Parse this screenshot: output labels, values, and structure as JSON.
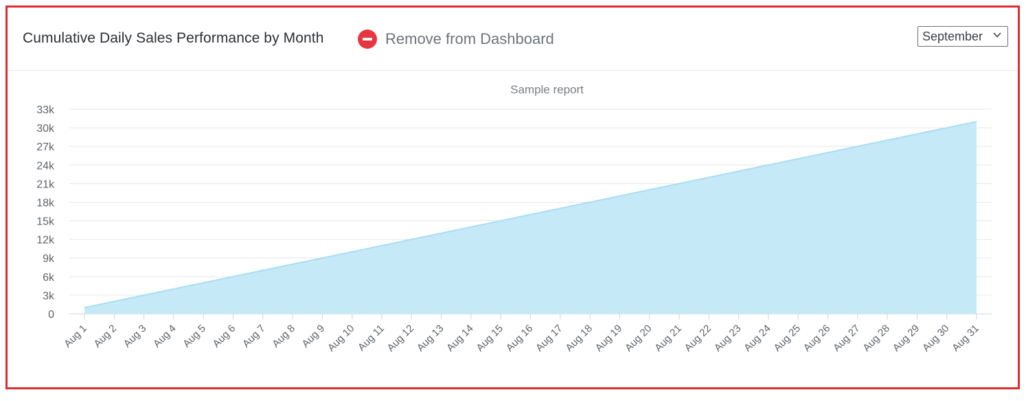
{
  "header": {
    "title": "Cumulative Daily Sales Performance by Month",
    "remove_label": "Remove from Dashboard",
    "month_selected": "September"
  },
  "icons": {
    "remove": "minus-circle-icon",
    "dropdown": "chevron-down-icon"
  },
  "colors": {
    "frame_border": "#e02b2f",
    "remove_icon": "#e8363f",
    "area_fill": "#c5e9f7",
    "area_line": "#a9ddf3"
  },
  "chart_data": {
    "type": "area",
    "title": "Sample report",
    "xlabel": "",
    "ylabel": "",
    "ylim": [
      0,
      33000
    ],
    "y_ticks": [
      0,
      3000,
      6000,
      9000,
      12000,
      15000,
      18000,
      21000,
      24000,
      27000,
      30000,
      33000
    ],
    "y_tick_labels": [
      "0",
      "3k",
      "6k",
      "9k",
      "12k",
      "15k",
      "18k",
      "21k",
      "24k",
      "27k",
      "30k",
      "33k"
    ],
    "grid": true,
    "legend": "none",
    "categories": [
      "Aug 1",
      "Aug 2",
      "Aug 3",
      "Aug 4",
      "Aug 5",
      "Aug 6",
      "Aug 7",
      "Aug 8",
      "Aug 9",
      "Aug 10",
      "Aug 11",
      "Aug 12",
      "Aug 13",
      "Aug 14",
      "Aug 15",
      "Aug 16",
      "Aug 17",
      "Aug 18",
      "Aug 19",
      "Aug 20",
      "Aug 21",
      "Aug 22",
      "Aug 23",
      "Aug 24",
      "Aug 25",
      "Aug 26",
      "Aug 27",
      "Aug 28",
      "Aug 29",
      "Aug 30",
      "Aug 31"
    ],
    "values": [
      1000,
      2000,
      3000,
      4000,
      5000,
      6000,
      7000,
      8000,
      9000,
      10000,
      11000,
      12000,
      13000,
      14000,
      15000,
      16000,
      17000,
      18000,
      19000,
      20000,
      21000,
      22000,
      23000,
      24000,
      25000,
      26000,
      27000,
      28000,
      29000,
      30000,
      31000
    ]
  }
}
